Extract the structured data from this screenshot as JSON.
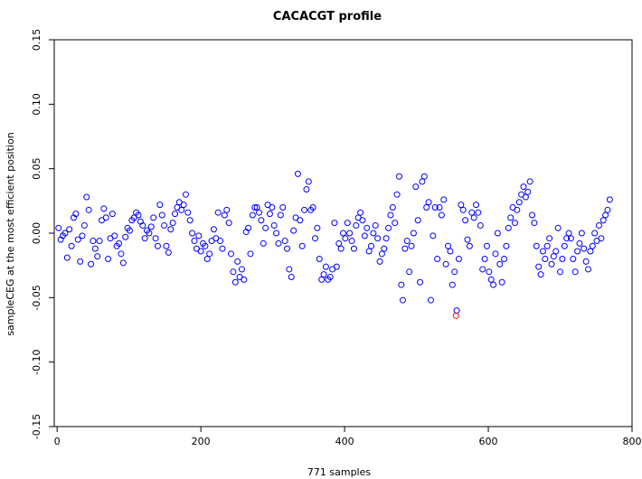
{
  "chart_data": {
    "type": "scatter",
    "title": "CACACGT profile",
    "xlabel": "771 samples",
    "ylabel": "sampleCEG at the most efficient position",
    "xlim": [
      -4,
      800
    ],
    "ylim": [
      -0.15,
      0.15
    ],
    "x_ticks": [
      0,
      200,
      400,
      600,
      800
    ],
    "y_ticks": [
      -0.15,
      -0.1,
      -0.05,
      0.0,
      0.05,
      0.1,
      0.15
    ],
    "x_tick_labels": [
      "0",
      "200",
      "400",
      "600",
      "800"
    ],
    "y_tick_labels": [
      "-0.15",
      "-0.10",
      "-0.05",
      "0.00",
      "0.05",
      "0.10",
      "0.15"
    ],
    "grid": false,
    "marker": "open-circle",
    "point_color": "#0000ff",
    "highlight_color": "#ff0000",
    "n_samples": 771,
    "highlight": {
      "x": 555,
      "y": -0.064
    },
    "series": [
      {
        "values": [
          [
            2,
            0.004
          ],
          [
            5,
            -0.005
          ],
          [
            8,
            -0.002
          ],
          [
            11,
            0.0
          ],
          [
            14,
            -0.019
          ],
          [
            17,
            0.003
          ],
          [
            20,
            -0.01
          ],
          [
            23,
            0.012
          ],
          [
            26,
            0.015
          ],
          [
            29,
            -0.005
          ],
          [
            32,
            -0.022
          ],
          [
            35,
            -0.002
          ],
          [
            38,
            0.006
          ],
          [
            41,
            0.028
          ],
          [
            44,
            0.018
          ],
          [
            47,
            -0.024
          ],
          [
            50,
            -0.006
          ],
          [
            53,
            -0.012
          ],
          [
            56,
            -0.018
          ],
          [
            59,
            -0.006
          ],
          [
            62,
            0.01
          ],
          [
            65,
            0.019
          ],
          [
            68,
            0.012
          ],
          [
            71,
            -0.02
          ],
          [
            74,
            -0.004
          ],
          [
            77,
            0.015
          ],
          [
            80,
            -0.002
          ],
          [
            83,
            -0.01
          ],
          [
            86,
            -0.008
          ],
          [
            89,
            -0.016
          ],
          [
            92,
            -0.023
          ],
          [
            95,
            -0.003
          ],
          [
            98,
            0.004
          ],
          [
            101,
            0.002
          ],
          [
            104,
            0.01
          ],
          [
            107,
            0.012
          ],
          [
            110,
            0.016
          ],
          [
            113,
            0.014
          ],
          [
            116,
            0.009
          ],
          [
            119,
            0.006
          ],
          [
            122,
            -0.004
          ],
          [
            125,
            0.002
          ],
          [
            128,
            0.0
          ],
          [
            131,
            0.005
          ],
          [
            134,
            0.012
          ],
          [
            137,
            -0.004
          ],
          [
            140,
            -0.01
          ],
          [
            143,
            0.022
          ],
          [
            146,
            0.014
          ],
          [
            149,
            0.006
          ],
          [
            152,
            -0.01
          ],
          [
            155,
            -0.015
          ],
          [
            158,
            0.003
          ],
          [
            161,
            0.008
          ],
          [
            164,
            0.015
          ],
          [
            167,
            0.02
          ],
          [
            170,
            0.024
          ],
          [
            173,
            0.018
          ],
          [
            176,
            0.022
          ],
          [
            179,
            0.03
          ],
          [
            182,
            0.016
          ],
          [
            185,
            0.01
          ],
          [
            188,
            0.0
          ],
          [
            191,
            -0.006
          ],
          [
            194,
            -0.012
          ],
          [
            197,
            -0.002
          ],
          [
            200,
            -0.014
          ],
          [
            203,
            -0.008
          ],
          [
            206,
            -0.01
          ],
          [
            209,
            -0.02
          ],
          [
            212,
            -0.016
          ],
          [
            215,
            -0.006
          ],
          [
            218,
            0.003
          ],
          [
            221,
            -0.004
          ],
          [
            224,
            0.016
          ],
          [
            227,
            -0.006
          ],
          [
            230,
            -0.012
          ],
          [
            233,
            0.014
          ],
          [
            236,
            0.018
          ],
          [
            239,
            0.008
          ],
          [
            242,
            -0.016
          ],
          [
            245,
            -0.03
          ],
          [
            248,
            -0.038
          ],
          [
            251,
            -0.022
          ],
          [
            254,
            -0.034
          ],
          [
            257,
            -0.028
          ],
          [
            260,
            -0.036
          ],
          [
            263,
            0.001
          ],
          [
            266,
            0.004
          ],
          [
            269,
            -0.016
          ],
          [
            272,
            0.014
          ],
          [
            275,
            0.02
          ],
          [
            278,
            0.02
          ],
          [
            281,
            0.016
          ],
          [
            284,
            0.01
          ],
          [
            287,
            -0.008
          ],
          [
            290,
            0.004
          ],
          [
            293,
            0.022
          ],
          [
            296,
            0.015
          ],
          [
            299,
            0.02
          ],
          [
            302,
            0.006
          ],
          [
            305,
            0.0
          ],
          [
            308,
            -0.008
          ],
          [
            311,
            0.014
          ],
          [
            314,
            0.02
          ],
          [
            317,
            -0.006
          ],
          [
            320,
            -0.012
          ],
          [
            323,
            -0.028
          ],
          [
            326,
            -0.034
          ],
          [
            329,
            0.002
          ],
          [
            332,
            0.012
          ],
          [
            335,
            0.046
          ],
          [
            338,
            0.01
          ],
          [
            341,
            -0.01
          ],
          [
            344,
            0.018
          ],
          [
            347,
            0.034
          ],
          [
            350,
            0.04
          ],
          [
            353,
            0.018
          ],
          [
            356,
            0.02
          ],
          [
            359,
            -0.004
          ],
          [
            362,
            0.004
          ],
          [
            365,
            -0.02
          ],
          [
            368,
            -0.036
          ],
          [
            371,
            -0.032
          ],
          [
            374,
            -0.026
          ],
          [
            377,
            -0.036
          ],
          [
            380,
            -0.034
          ],
          [
            383,
            -0.028
          ],
          [
            386,
            0.008
          ],
          [
            389,
            -0.026
          ],
          [
            392,
            -0.008
          ],
          [
            395,
            -0.012
          ],
          [
            398,
            0.0
          ],
          [
            401,
            -0.004
          ],
          [
            404,
            0.008
          ],
          [
            407,
            0.0
          ],
          [
            410,
            -0.006
          ],
          [
            413,
            -0.012
          ],
          [
            416,
            0.006
          ],
          [
            419,
            0.012
          ],
          [
            422,
            0.016
          ],
          [
            425,
            0.01
          ],
          [
            428,
            -0.002
          ],
          [
            431,
            0.004
          ],
          [
            434,
            -0.014
          ],
          [
            437,
            -0.01
          ],
          [
            440,
            0.0
          ],
          [
            443,
            0.006
          ],
          [
            446,
            -0.004
          ],
          [
            449,
            -0.022
          ],
          [
            452,
            -0.016
          ],
          [
            455,
            -0.012
          ],
          [
            458,
            -0.004
          ],
          [
            461,
            0.004
          ],
          [
            464,
            0.014
          ],
          [
            467,
            0.02
          ],
          [
            470,
            0.008
          ],
          [
            473,
            0.03
          ],
          [
            476,
            0.044
          ],
          [
            479,
            -0.04
          ],
          [
            481,
            -0.052
          ],
          [
            484,
            -0.012
          ],
          [
            487,
            -0.006
          ],
          [
            490,
            -0.03
          ],
          [
            493,
            -0.01
          ],
          [
            496,
            0.0
          ],
          [
            499,
            0.036
          ],
          [
            502,
            0.01
          ],
          [
            505,
            -0.038
          ],
          [
            508,
            0.04
          ],
          [
            511,
            0.044
          ],
          [
            514,
            0.02
          ],
          [
            517,
            0.024
          ],
          [
            520,
            -0.052
          ],
          [
            523,
            -0.002
          ],
          [
            526,
            0.02
          ],
          [
            529,
            -0.02
          ],
          [
            532,
            0.02
          ],
          [
            535,
            0.014
          ],
          [
            538,
            0.026
          ],
          [
            541,
            -0.024
          ],
          [
            544,
            -0.01
          ],
          [
            547,
            -0.014
          ],
          [
            550,
            -0.04
          ],
          [
            553,
            -0.03
          ],
          [
            556,
            -0.06
          ],
          [
            559,
            -0.02
          ],
          [
            562,
            0.022
          ],
          [
            565,
            0.018
          ],
          [
            568,
            0.01
          ],
          [
            571,
            -0.005
          ],
          [
            574,
            -0.01
          ],
          [
            577,
            0.016
          ],
          [
            580,
            0.012
          ],
          [
            583,
            0.022
          ],
          [
            586,
            0.016
          ],
          [
            589,
            0.006
          ],
          [
            592,
            -0.028
          ],
          [
            595,
            -0.02
          ],
          [
            598,
            -0.01
          ],
          [
            601,
            -0.03
          ],
          [
            604,
            -0.036
          ],
          [
            607,
            -0.04
          ],
          [
            610,
            -0.016
          ],
          [
            613,
            0.0
          ],
          [
            616,
            -0.024
          ],
          [
            619,
            -0.038
          ],
          [
            622,
            -0.02
          ],
          [
            625,
            -0.01
          ],
          [
            628,
            0.004
          ],
          [
            631,
            0.012
          ],
          [
            634,
            0.02
          ],
          [
            637,
            0.008
          ],
          [
            640,
            0.018
          ],
          [
            643,
            0.024
          ],
          [
            646,
            0.03
          ],
          [
            649,
            0.036
          ],
          [
            652,
            0.028
          ],
          [
            655,
            0.032
          ],
          [
            658,
            0.04
          ],
          [
            661,
            0.014
          ],
          [
            664,
            0.008
          ],
          [
            667,
            -0.01
          ],
          [
            670,
            -0.026
          ],
          [
            673,
            -0.032
          ],
          [
            676,
            -0.014
          ],
          [
            679,
            -0.02
          ],
          [
            682,
            -0.01
          ],
          [
            685,
            -0.004
          ],
          [
            688,
            -0.024
          ],
          [
            691,
            -0.018
          ],
          [
            694,
            -0.014
          ],
          [
            697,
            0.004
          ],
          [
            700,
            -0.03
          ],
          [
            703,
            -0.02
          ],
          [
            706,
            -0.01
          ],
          [
            709,
            -0.004
          ],
          [
            712,
            0.0
          ],
          [
            715,
            -0.004
          ],
          [
            718,
            -0.02
          ],
          [
            721,
            -0.03
          ],
          [
            724,
            -0.014
          ],
          [
            727,
            -0.008
          ],
          [
            730,
            0.0
          ],
          [
            733,
            -0.012
          ],
          [
            736,
            -0.022
          ],
          [
            739,
            -0.028
          ],
          [
            742,
            -0.014
          ],
          [
            745,
            -0.01
          ],
          [
            748,
            0.0
          ],
          [
            751,
            -0.006
          ],
          [
            754,
            0.006
          ],
          [
            757,
            -0.004
          ],
          [
            760,
            0.01
          ],
          [
            763,
            0.014
          ],
          [
            766,
            0.018
          ],
          [
            769,
            0.026
          ]
        ]
      }
    ]
  }
}
